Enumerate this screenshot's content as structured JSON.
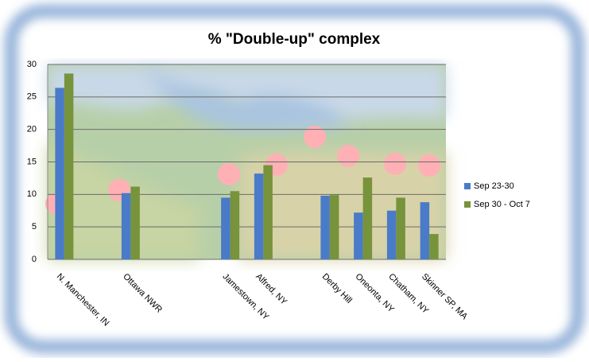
{
  "chart_data": {
    "type": "bar",
    "title": "% \"Double-up\" complex",
    "categories": [
      "N. Manchester, IN",
      null,
      "Ottawa NWR",
      null,
      null,
      "Jamestown, NY",
      "Alfred, NY",
      null,
      "Derby Hill",
      "Oneonta, NY",
      "Chatham, NY",
      "Skinner SP, MA"
    ],
    "series": [
      {
        "name": "Sep 23-30",
        "color": "#4a7bc8",
        "values": [
          26.4,
          null,
          10.2,
          null,
          null,
          9.5,
          13.2,
          null,
          9.8,
          7.2,
          7.5,
          8.8
        ]
      },
      {
        "name": "Sep 30 - Oct 7",
        "color": "#77933c",
        "values": [
          28.6,
          null,
          11.2,
          null,
          null,
          10.5,
          14.5,
          null,
          9.9,
          12.6,
          9.5,
          3.9
        ]
      }
    ],
    "ylim": [
      0,
      30
    ],
    "yticks": [
      0,
      5,
      10,
      15,
      20,
      25,
      30
    ],
    "grid": true,
    "legend": "right"
  }
}
